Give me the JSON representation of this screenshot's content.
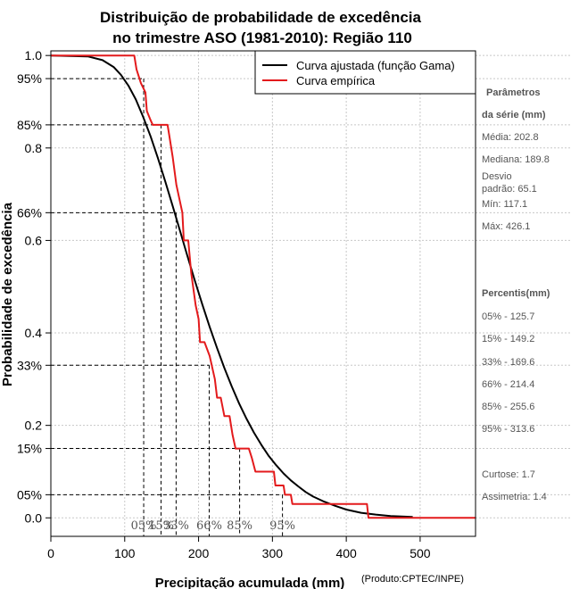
{
  "chart_data": {
    "type": "line",
    "title": [
      "Distribuição de probabilidade de excedência",
      "no trimestre ASO (1981-2010): Região 110"
    ],
    "xlabel": "Precipitação acumulada (mm)",
    "ylabel": "Probabilidade de excedência",
    "credit": "(Produto:CPTEC/INPE)",
    "xlim": [
      0,
      575
    ],
    "ylim": [
      -0.04,
      1.01
    ],
    "x_ticks": [
      0,
      100,
      200,
      300,
      400,
      500
    ],
    "y_ticks_left": [
      {
        "value": 1.0,
        "label": "1.0"
      },
      {
        "value": 0.95,
        "label": "95%"
      },
      {
        "value": 0.85,
        "label": "85%"
      },
      {
        "value": 0.8,
        "label": "0.8"
      },
      {
        "value": 0.66,
        "label": "66%"
      },
      {
        "value": 0.6,
        "label": "0.6"
      },
      {
        "value": 0.4,
        "label": "0.4"
      },
      {
        "value": 0.33,
        "label": "33%"
      },
      {
        "value": 0.2,
        "label": "0.2"
      },
      {
        "value": 0.15,
        "label": "15%"
      },
      {
        "value": 0.05,
        "label": "05%"
      },
      {
        "value": 0.0,
        "label": "0.0"
      }
    ],
    "legend": {
      "position": "top-right",
      "entries": [
        {
          "label": "Curva ajustada (função Gama)",
          "color": "#000000"
        },
        {
          "label": "Curva empírica",
          "color": "#e31a1c"
        }
      ]
    },
    "series": [
      {
        "name": "Curva ajustada (função Gama)",
        "color": "#000000",
        "points": [
          [
            0,
            1.0
          ],
          [
            50,
            0.998
          ],
          [
            70,
            0.99
          ],
          [
            85,
            0.975
          ],
          [
            95,
            0.958
          ],
          [
            105,
            0.935
          ],
          [
            115,
            0.905
          ],
          [
            125,
            0.867
          ],
          [
            135,
            0.825
          ],
          [
            145,
            0.778
          ],
          [
            155,
            0.727
          ],
          [
            165,
            0.674
          ],
          [
            175,
            0.62
          ],
          [
            185,
            0.566
          ],
          [
            195,
            0.513
          ],
          [
            205,
            0.462
          ],
          [
            215,
            0.413
          ],
          [
            225,
            0.367
          ],
          [
            235,
            0.324
          ],
          [
            245,
            0.284
          ],
          [
            255,
            0.247
          ],
          [
            265,
            0.214
          ],
          [
            275,
            0.184
          ],
          [
            285,
            0.158
          ],
          [
            295,
            0.134
          ],
          [
            305,
            0.114
          ],
          [
            315,
            0.096
          ],
          [
            325,
            0.081
          ],
          [
            335,
            0.068
          ],
          [
            345,
            0.056
          ],
          [
            355,
            0.046
          ],
          [
            370,
            0.035
          ],
          [
            385,
            0.026
          ],
          [
            400,
            0.018
          ],
          [
            420,
            0.011
          ],
          [
            440,
            0.007
          ],
          [
            460,
            0.004
          ],
          [
            490,
            0.002
          ]
        ]
      },
      {
        "name": "Curva empírica",
        "color": "#e31a1c",
        "points": [
          [
            0,
            1.0
          ],
          [
            113,
            1.0
          ],
          [
            116,
            0.97
          ],
          [
            122,
            0.94
          ],
          [
            128,
            0.92
          ],
          [
            130,
            0.88
          ],
          [
            135,
            0.86
          ],
          [
            138,
            0.85
          ],
          [
            158,
            0.85
          ],
          [
            160,
            0.83
          ],
          [
            165,
            0.78
          ],
          [
            170,
            0.72
          ],
          [
            178,
            0.66
          ],
          [
            180,
            0.6
          ],
          [
            186,
            0.6
          ],
          [
            190,
            0.53
          ],
          [
            196,
            0.46
          ],
          [
            200,
            0.43
          ],
          [
            202,
            0.38
          ],
          [
            208,
            0.38
          ],
          [
            215,
            0.35
          ],
          [
            222,
            0.3
          ],
          [
            225,
            0.26
          ],
          [
            230,
            0.26
          ],
          [
            235,
            0.22
          ],
          [
            242,
            0.22
          ],
          [
            246,
            0.18
          ],
          [
            250,
            0.15
          ],
          [
            268,
            0.15
          ],
          [
            272,
            0.13
          ],
          [
            277,
            0.1
          ],
          [
            302,
            0.1
          ],
          [
            304,
            0.07
          ],
          [
            315,
            0.07
          ],
          [
            317,
            0.05
          ],
          [
            325,
            0.05
          ],
          [
            327,
            0.03
          ],
          [
            428,
            0.03
          ],
          [
            430,
            0.0
          ],
          [
            575,
            0.0
          ]
        ]
      }
    ],
    "percentile_markers": [
      {
        "label": "05%",
        "x": 125.7,
        "y": 0.95
      },
      {
        "label": "15%",
        "x": 149.2,
        "y": 0.85
      },
      {
        "label": "33%",
        "x": 169.6,
        "y": 0.66
      },
      {
        "label": "66%",
        "x": 214.4,
        "y": 0.33
      },
      {
        "label": "85%",
        "x": 255.6,
        "y": 0.15
      },
      {
        "label": "95%",
        "x": 313.6,
        "y": 0.05
      }
    ],
    "side_panel": {
      "params_heading": [
        "Parâmetros",
        "da série (mm)"
      ],
      "params": [
        "Média: 202.8",
        "Mediana: 189.8",
        "Desvio",
        "padrão: 65.1",
        "Mín: 117.1",
        "Máx: 426.1"
      ],
      "percentis_heading": "Percentis(mm)",
      "percentis": [
        "05% - 125.7",
        "15% - 149.2",
        "33% - 169.6",
        "66% - 214.4",
        "85% - 255.6",
        "95% - 313.6"
      ],
      "extra": [
        "Curtose: 1.7",
        "Assimetria: 1.4"
      ]
    }
  }
}
